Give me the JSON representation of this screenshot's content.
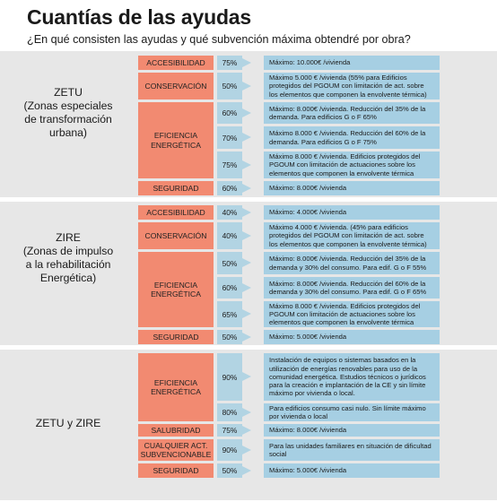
{
  "title": "Cuantías de las ayudas",
  "subtitle": "¿En qué consisten las ayudas y qué subvención máxima obtendré por obra?",
  "groups": [
    {
      "label": "ZETU\n(Zonas especiales\nde transformación\nurbana)",
      "categories": [
        "ACCESIBILIDAD",
        "CONSERVACIÓN",
        "EFICIENCIA\nENERGÉTICA",
        "SEGURIDAD"
      ],
      "rows": [
        {
          "pct": "75%",
          "desc": "Máximo: 10.000€ /vivienda"
        },
        {
          "pct": "50%",
          "desc": "Máximo 5.000 € /vivienda (55% para Edificios protegidos del PGOUM con limitación de act. sobre los elementos que componen la envolvente térmica)"
        },
        {
          "pct": "60%",
          "desc": "Máximo: 8.000€ /vivienda. Reducción del 35% de la demanda. Para edificios G o F 65%"
        },
        {
          "pct": "70%",
          "desc": "Máximo 8.000 € /vivienda. Reducción del 60% de la demanda. Para edificios G o F 75%"
        },
        {
          "pct": "75%",
          "desc": "Máximo 8.000 € /vivienda. Edificios protegidos del PGOUM con limitación de actuaciones sobre los elementos que componen la envolvente térmica"
        },
        {
          "pct": "60%",
          "desc": "Máximo: 8.000€ /vivienda"
        }
      ]
    },
    {
      "label": "ZIRE\n(Zonas de impulso\na la rehabilitación\nEnergética)",
      "categories": [
        "ACCESIBILIDAD",
        "CONSERVACIÓN",
        "EFICIENCIA\nENERGÉTICA",
        "SEGURIDAD"
      ],
      "rows": [
        {
          "pct": "40%",
          "desc": "Máximo: 4.000€ /vivienda"
        },
        {
          "pct": "40%",
          "desc": "Máximo 4.000 € /vivienda. (45% para edificios protegidos del PGOUM con limitación de act. sobre los elementos que componen la envolvente térmica)"
        },
        {
          "pct": "50%",
          "desc": "Máximo: 8.000€ /vivienda. Reducción del 35% de la demanda y 30% del consumo. Para edif. G o F 55%"
        },
        {
          "pct": "60%",
          "desc": "Máximo: 8.000€ /vivienda. Reducción del 60% de la demanda y 30% del consumo. Para edif. G o F 65%"
        },
        {
          "pct": "65%",
          "desc": "Máximo 8.000 € /vivienda. Edificios protegidos del PGOUM con limitación de actuaciones sobre los elementos que componen la envolvente térmica"
        },
        {
          "pct": "50%",
          "desc": "Máximo: 5.000€ /vivienda"
        }
      ]
    },
    {
      "label": "ZETU y ZIRE",
      "categories": [
        "EFICIENCIA\nENERGÉTICA",
        "SALUBRIDAD",
        "CUALQUIER ACT.\nSUBVENCIONABLE",
        "SEGURIDAD"
      ],
      "rows": [
        {
          "pct": "90%",
          "desc": "Instalación de equipos o sistemas basados en la utilización de energías renovables para uso de la comunidad energética. Estudios técnicos o jurídicos para la creación e implantación de la CE y sin límite máximo por vivienda o local."
        },
        {
          "pct": "80%",
          "desc": "Para edificios consumo casi nulo. Sin límite máximo por vivienda o local"
        },
        {
          "pct": "75%",
          "desc": "Máximo: 8.000€ /vivienda"
        },
        {
          "pct": "90%",
          "desc": "Para las unidades familiares en situación de dificultad social"
        },
        {
          "pct": "50%",
          "desc": "Máximo: 5.000€ /vivienda"
        }
      ]
    }
  ],
  "colors": {
    "category": "#f28a71",
    "percent": "#b2d4e3",
    "description": "#a6cfe3",
    "band": "#e7e7e7"
  }
}
